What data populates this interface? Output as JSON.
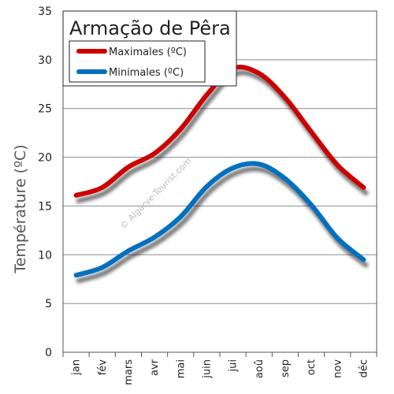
{
  "chart_data": {
    "type": "line",
    "title": "Armação de Pêra",
    "ylabel": "Température (ºC)",
    "xlabel": "",
    "ylim": [
      0,
      35
    ],
    "yticks": [
      0,
      5,
      10,
      15,
      20,
      25,
      30,
      35
    ],
    "grid": true,
    "legend_position": "top-left",
    "categories": [
      "jan",
      "fév",
      "mars",
      "avr",
      "mai",
      "juin",
      "jui",
      "aoû",
      "sep",
      "oct",
      "nov",
      "déc"
    ],
    "series": [
      {
        "name": "Maximales (ºC)",
        "color": "#cc0000",
        "values": [
          16.1,
          16.9,
          19.0,
          20.4,
          22.9,
          26.4,
          29.1,
          28.6,
          26.1,
          22.6,
          19.2,
          16.9
        ]
      },
      {
        "name": "Minimales (ºC)",
        "color": "#0070c0",
        "values": [
          7.9,
          8.7,
          10.4,
          11.8,
          13.9,
          17.0,
          18.9,
          19.3,
          17.8,
          15.1,
          11.7,
          9.5
        ]
      }
    ],
    "watermark": "© Algarve-Tourist.com"
  }
}
